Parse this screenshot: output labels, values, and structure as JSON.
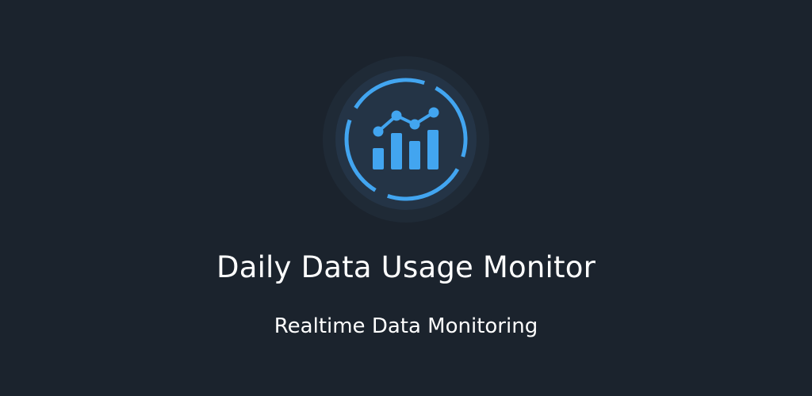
{
  "app": {
    "title": "Daily Data Usage Monitor",
    "subtitle": "Realtime Data Monitoring",
    "logo_icon": "analytics-chart-icon"
  },
  "colors": {
    "background": "#1b232d",
    "accent": "#42a5f0",
    "logo_outer": "#1f2a36",
    "logo_inner": "#243446",
    "text": "#ffffff"
  }
}
